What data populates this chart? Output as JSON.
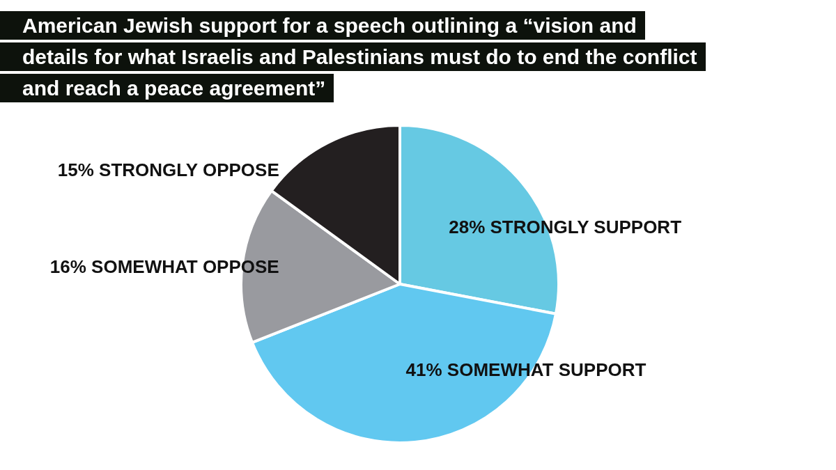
{
  "chart_data": {
    "type": "pie",
    "title": "American Jewish support for a speech outlining a “vision and details for what Israelis and Palestinians must do to end the conflict and reach a peace agreement”",
    "categories": [
      "STRONGLY SUPPORT",
      "SOMEWHAT SUPPORT",
      "SOMEWHAT OPPOSE",
      "STRONGLY OPPOSE"
    ],
    "values": [
      28,
      41,
      16,
      15
    ],
    "value_labels": [
      "28%",
      "41%",
      "16%",
      "15%"
    ],
    "colors": [
      "#66c9e3",
      "#61c8f0",
      "#999a9f",
      "#231f20"
    ],
    "legend": false
  }
}
